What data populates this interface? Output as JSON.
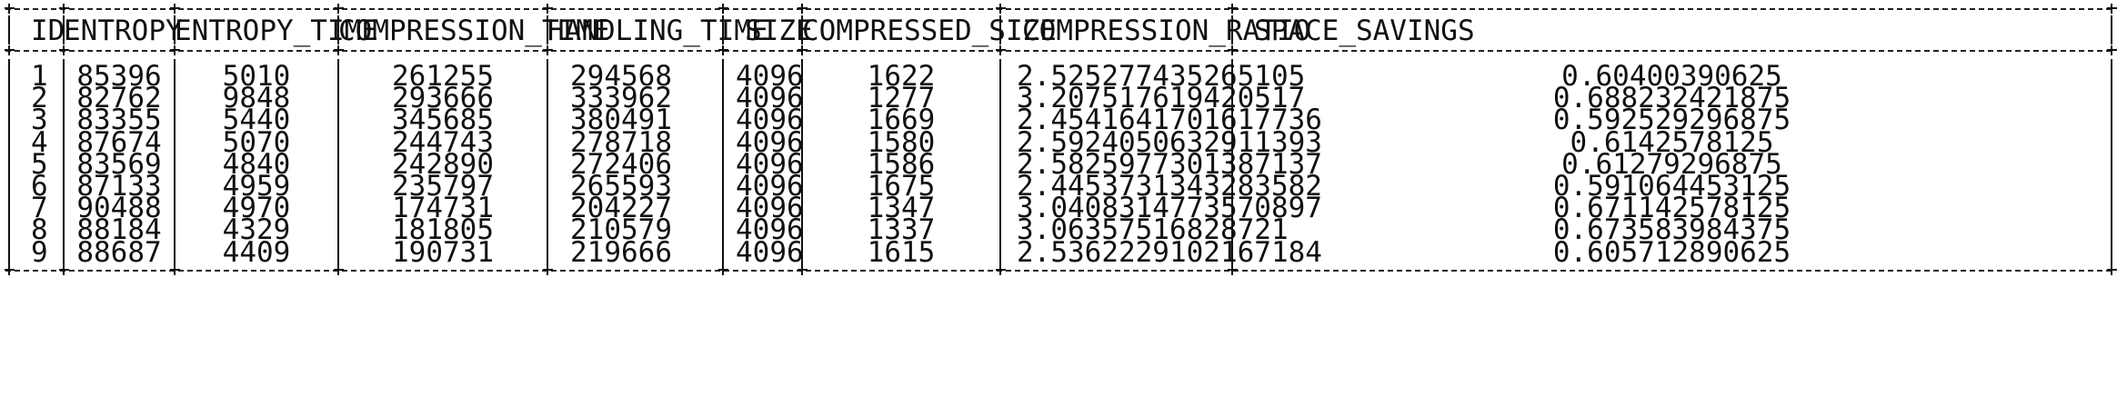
{
  "table": {
    "columns": [
      "ID",
      "ENTROPY",
      "ENTROPY_TIME",
      "COMPRESSION_TIME",
      "HANDLING_TIME",
      "SIZE",
      "COMPRESSED_SIZE",
      "COMPRESSION_RATIO",
      "SPACE_SAVINGS"
    ],
    "rows": [
      [
        "1",
        "85396",
        "5010",
        "261255",
        "294568",
        "4096",
        "1622",
        "2.525277435265105",
        "0.60400390625"
      ],
      [
        "2",
        "82762",
        "9848",
        "293666",
        "333962",
        "4096",
        "1277",
        "3.207517619420517",
        "0.688232421875"
      ],
      [
        "3",
        "83355",
        "5440",
        "345685",
        "380491",
        "4096",
        "1669",
        "2.4541641701617736",
        "0.592529296875"
      ],
      [
        "4",
        "87674",
        "5070",
        "244743",
        "278718",
        "4096",
        "1580",
        "2.5924050632911393",
        "0.6142578125"
      ],
      [
        "5",
        "83569",
        "4840",
        "242890",
        "272406",
        "4096",
        "1586",
        "2.5825977301387137",
        "0.61279296875"
      ],
      [
        "6",
        "87133",
        "4959",
        "235797",
        "265593",
        "4096",
        "1675",
        "2.4453731343283582",
        "0.591064453125"
      ],
      [
        "7",
        "90488",
        "4970",
        "174731",
        "204227",
        "4096",
        "1347",
        "3.0408314773570897",
        "0.671142578125"
      ],
      [
        "8",
        "88184",
        "4329",
        "181805",
        "210579",
        "4096",
        "1337",
        "3.06357516828721",
        "0.673583984375"
      ],
      [
        "9",
        "88687",
        "4409",
        "190731",
        "219666",
        "4096",
        "1615",
        "2.5362229102167184",
        "0.605712890625"
      ]
    ]
  }
}
